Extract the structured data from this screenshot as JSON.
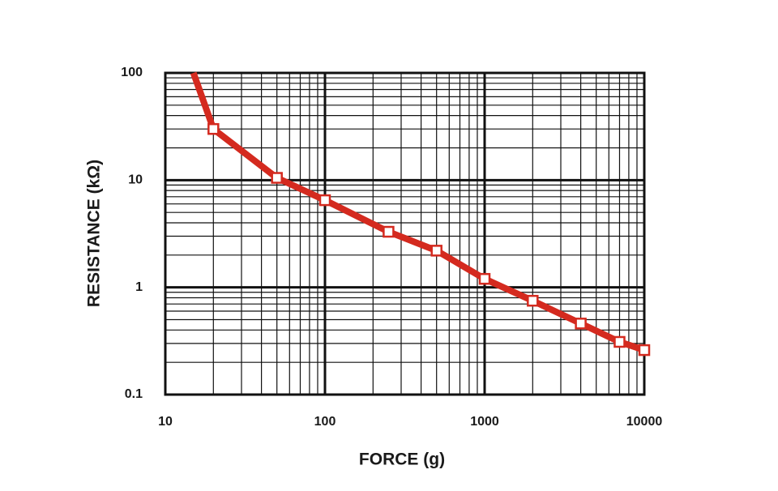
{
  "chart_data": {
    "type": "line",
    "x_label": "FORCE (g)",
    "y_label": "RESISTANCE (kΩ)",
    "x": [
      15,
      20,
      50,
      100,
      250,
      500,
      1000,
      2000,
      4000,
      7000,
      10000
    ],
    "series": [
      {
        "color": "#d42a1f",
        "values": [
          100,
          30,
          10.5,
          6.5,
          3.3,
          2.2,
          1.2,
          0.75,
          0.46,
          0.31,
          0.26
        ]
      }
    ],
    "xlim": [
      10,
      10000
    ],
    "ylim": [
      0.1,
      100
    ],
    "xticks": [
      10,
      100,
      1000,
      10000
    ],
    "yticks": [
      0.1,
      1,
      10,
      100
    ],
    "x_log": true,
    "y_log": true,
    "grid": true,
    "minor_grid": true,
    "markers": true
  }
}
